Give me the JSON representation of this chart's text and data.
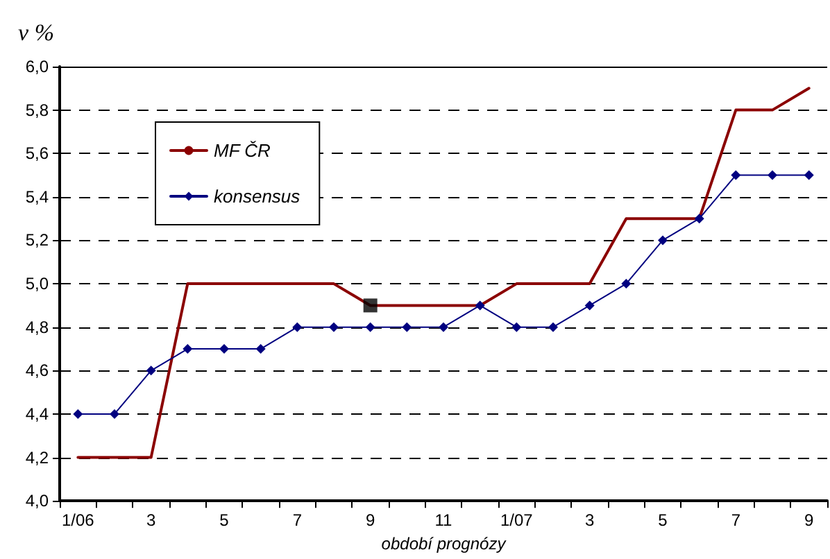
{
  "chart_data": {
    "type": "line",
    "xlabel": "období prognózy",
    "ylabel": "v %",
    "categories": [
      "1/06",
      null,
      "3",
      null,
      "5",
      null,
      "7",
      null,
      "9",
      null,
      "11",
      null,
      "1/07",
      null,
      "3",
      null,
      "5",
      null,
      "7",
      null,
      "9"
    ],
    "series": [
      {
        "name": "MF ČR",
        "color": "#8b0000",
        "marker": "none",
        "values": [
          4.2,
          4.2,
          4.2,
          5.0,
          5.0,
          5.0,
          5.0,
          5.0,
          4.9,
          4.9,
          4.9,
          4.9,
          5.0,
          5.0,
          5.0,
          5.3,
          5.3,
          5.3,
          5.8,
          5.8,
          5.9
        ]
      },
      {
        "name": "konsensus",
        "color": "#000080",
        "marker": "diamond",
        "values": [
          4.4,
          4.4,
          4.6,
          4.7,
          4.7,
          4.7,
          4.8,
          4.8,
          4.8,
          4.8,
          4.8,
          4.9,
          4.8,
          4.8,
          4.9,
          5.0,
          5.2,
          5.3,
          5.5,
          5.5,
          5.5
        ]
      },
      {
        "type": "scatter",
        "color": "#000000",
        "marker": "square",
        "values": [
          null,
          null,
          null,
          null,
          null,
          null,
          null,
          null,
          4.9,
          null,
          null,
          null,
          null,
          null,
          null,
          null,
          null,
          null,
          null,
          null,
          null
        ]
      }
    ],
    "ylim": [
      4.0,
      6.0
    ],
    "yticks": [
      {
        "value": 4.0,
        "label": "4,0"
      },
      {
        "value": 4.2,
        "label": "4,2"
      },
      {
        "value": 4.4,
        "label": "4,4"
      },
      {
        "value": 4.6,
        "label": "4,6"
      },
      {
        "value": 4.8,
        "label": "4,8"
      },
      {
        "value": 5.0,
        "label": "5,0"
      },
      {
        "value": 5.2,
        "label": "5,2"
      },
      {
        "value": 5.4,
        "label": "5,4"
      },
      {
        "value": 5.6,
        "label": "5,6"
      },
      {
        "value": 5.8,
        "label": "5,8"
      },
      {
        "value": 6.0,
        "label": "6,0"
      }
    ],
    "grid": "y",
    "legend": "top left",
    "line_style": "solid"
  }
}
